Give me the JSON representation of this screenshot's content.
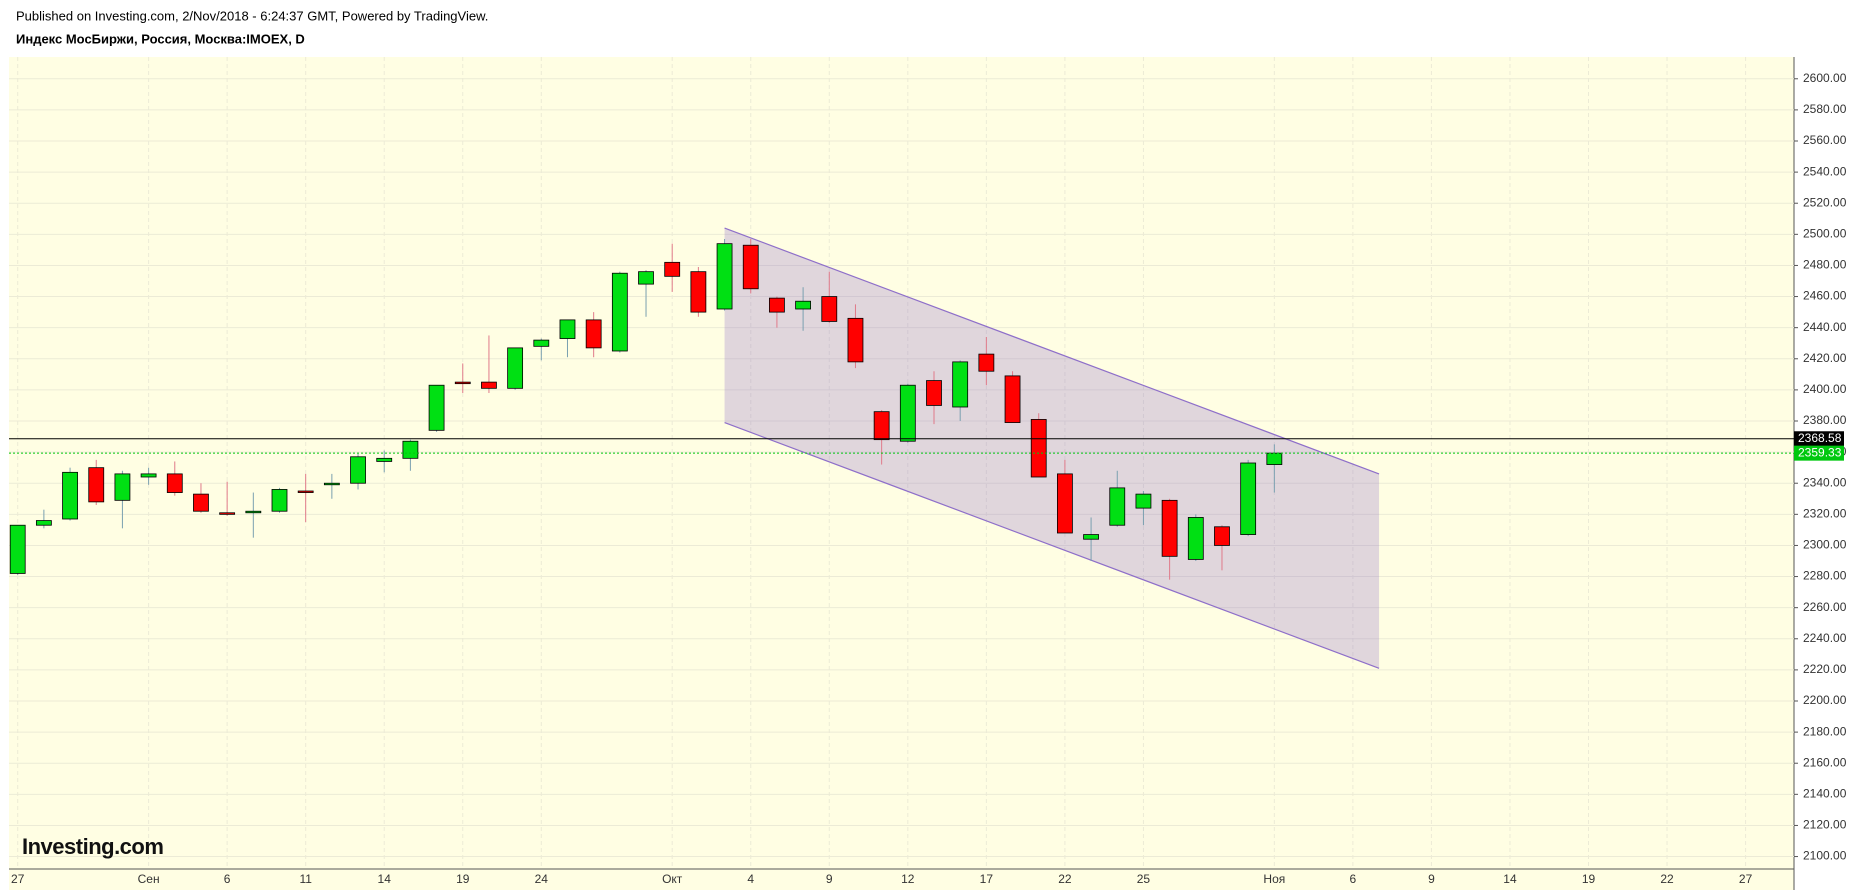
{
  "header": {
    "published": "Published on Investing.com, 2/Nov/2018 - 6:24:37 GMT, Powered by TradingView.",
    "symbol": "Индекс МосБиржи, Россия, Москва:IMOEX, D"
  },
  "logo": "Investing.com",
  "chart_data": {
    "type": "candlestick",
    "categories": [
      "27",
      null,
      null,
      null,
      null,
      "Сен",
      null,
      null,
      "6",
      null,
      null,
      "11",
      null,
      null,
      "14",
      null,
      null,
      "19",
      null,
      null,
      "24",
      null,
      null,
      null,
      null,
      "Окт",
      null,
      null,
      "4",
      null,
      null,
      "9",
      null,
      null,
      "12",
      null,
      null,
      "17",
      null,
      null,
      "22",
      null,
      null,
      "25",
      null,
      null,
      null,
      null,
      "Ноя",
      null,
      null,
      "6",
      null,
      null,
      "9",
      null,
      null,
      "14",
      null,
      null,
      "19",
      null,
      null,
      "22",
      null,
      null,
      "27",
      null
    ],
    "open": [
      2282,
      2313,
      2317,
      2350,
      2329,
      2344,
      2346,
      2333,
      2321,
      2321,
      2322,
      2335,
      2339,
      2340,
      2354,
      2356,
      2374,
      2405,
      2405,
      2401,
      2428,
      2433,
      2445,
      2425,
      2468,
      2482,
      2476,
      2452,
      2493,
      2459,
      2452,
      2460,
      2446,
      2386,
      2367,
      2406,
      2389,
      2423,
      2409,
      2381,
      2346,
      2304,
      2313,
      2324,
      2329,
      2291,
      2312,
      2307,
      2352,
      null,
      null,
      null,
      null,
      null,
      null,
      null,
      null,
      null,
      null,
      null,
      null,
      null,
      null,
      null,
      null,
      null,
      null,
      null
    ],
    "high": [
      2313,
      2323,
      2350,
      2355,
      2348,
      2350,
      2354,
      2340,
      2341,
      2334,
      2337,
      2346,
      2346,
      2359,
      2361,
      2368,
      2403,
      2417,
      2435,
      2427,
      2433,
      2445,
      2450,
      2476,
      2477,
      2494,
      2479,
      2497,
      2497,
      2460,
      2466,
      2476,
      2455,
      2387,
      2404,
      2412,
      2419,
      2434,
      2412,
      2385,
      2355,
      2318,
      2348,
      2335,
      2330,
      2320,
      2313,
      2355,
      2365,
      null,
      null,
      null,
      null,
      null,
      null,
      null,
      null,
      null,
      null,
      null,
      null,
      null,
      null,
      null,
      null,
      null,
      null,
      null
    ],
    "low": [
      2281,
      2311,
      2316,
      2326,
      2311,
      2339,
      2332,
      2321,
      2319,
      2305,
      2321,
      2315,
      2330,
      2336,
      2347,
      2348,
      2373,
      2398,
      2398,
      2400,
      2419,
      2421,
      2421,
      2424,
      2447,
      2463,
      2447,
      2451,
      2462,
      2440,
      2438,
      2443,
      2414,
      2352,
      2366,
      2378,
      2380,
      2403,
      2379,
      2344,
      2308,
      2290,
      2312,
      2313,
      2278,
      2290,
      2284,
      2306,
      2334,
      null,
      null,
      null,
      null,
      null,
      null,
      null,
      null,
      null,
      null,
      null,
      null,
      null,
      null,
      null,
      null,
      null,
      null,
      null
    ],
    "close": [
      2313,
      2316,
      2347,
      2328,
      2346,
      2346,
      2334,
      2322,
      2320,
      2322,
      2336,
      2334,
      2340,
      2357,
      2356,
      2367,
      2403,
      2404,
      2401,
      2427,
      2432,
      2445,
      2427,
      2475,
      2476,
      2473,
      2450,
      2494,
      2465,
      2450,
      2457,
      2444,
      2418,
      2368,
      2403,
      2390,
      2418,
      2412,
      2379,
      2344,
      2308,
      2307,
      2337,
      2333,
      2293,
      2318,
      2300,
      2353,
      2359.33,
      null,
      null,
      null,
      null,
      null,
      null,
      null,
      null,
      null,
      null,
      null,
      null,
      null,
      null,
      null,
      null,
      null,
      null,
      null
    ],
    "up_color": "#00e013",
    "down_color": "#ff0000",
    "ylim": [
      2092,
      2614
    ],
    "yticks": [
      {
        "value": 2100,
        "label": "2100.00"
      },
      {
        "value": 2120,
        "label": "2120.00"
      },
      {
        "value": 2140,
        "label": "2140.00"
      },
      {
        "value": 2160,
        "label": "2160.00"
      },
      {
        "value": 2180,
        "label": "2180.00"
      },
      {
        "value": 2200,
        "label": "2200.00"
      },
      {
        "value": 2220,
        "label": "2220.00"
      },
      {
        "value": 2240,
        "label": "2240.00"
      },
      {
        "value": 2260,
        "label": "2260.00"
      },
      {
        "value": 2280,
        "label": "2280.00"
      },
      {
        "value": 2300,
        "label": "2300.00"
      },
      {
        "value": 2320,
        "label": "2320.00"
      },
      {
        "value": 2340,
        "label": "2340.00"
      },
      {
        "value": 2360,
        "label": "2360.00"
      },
      {
        "value": 2380,
        "label": "2380.00"
      },
      {
        "value": 2400,
        "label": "2400.00"
      },
      {
        "value": 2420,
        "label": "2420.00"
      },
      {
        "value": 2440,
        "label": "2440.00"
      },
      {
        "value": 2460,
        "label": "2460.00"
      },
      {
        "value": 2480,
        "label": "2480.00"
      },
      {
        "value": 2500,
        "label": "2500.00"
      },
      {
        "value": 2520,
        "label": "2520.00"
      },
      {
        "value": 2540,
        "label": "2540.00"
      },
      {
        "value": 2560,
        "label": "2560.00"
      },
      {
        "value": 2580,
        "label": "2580.00"
      },
      {
        "value": 2600,
        "label": "2600.00"
      }
    ],
    "price_lines": [
      {
        "value": 2368.58,
        "color": "#000000"
      },
      {
        "value": 2359.33,
        "color": "#00c80f"
      }
    ],
    "channel": {
      "x": [
        27,
        52
      ],
      "upper": [
        2504,
        2346
      ],
      "lower": [
        2379,
        2221
      ],
      "color": "#8e6fc9"
    },
    "grid": true
  }
}
